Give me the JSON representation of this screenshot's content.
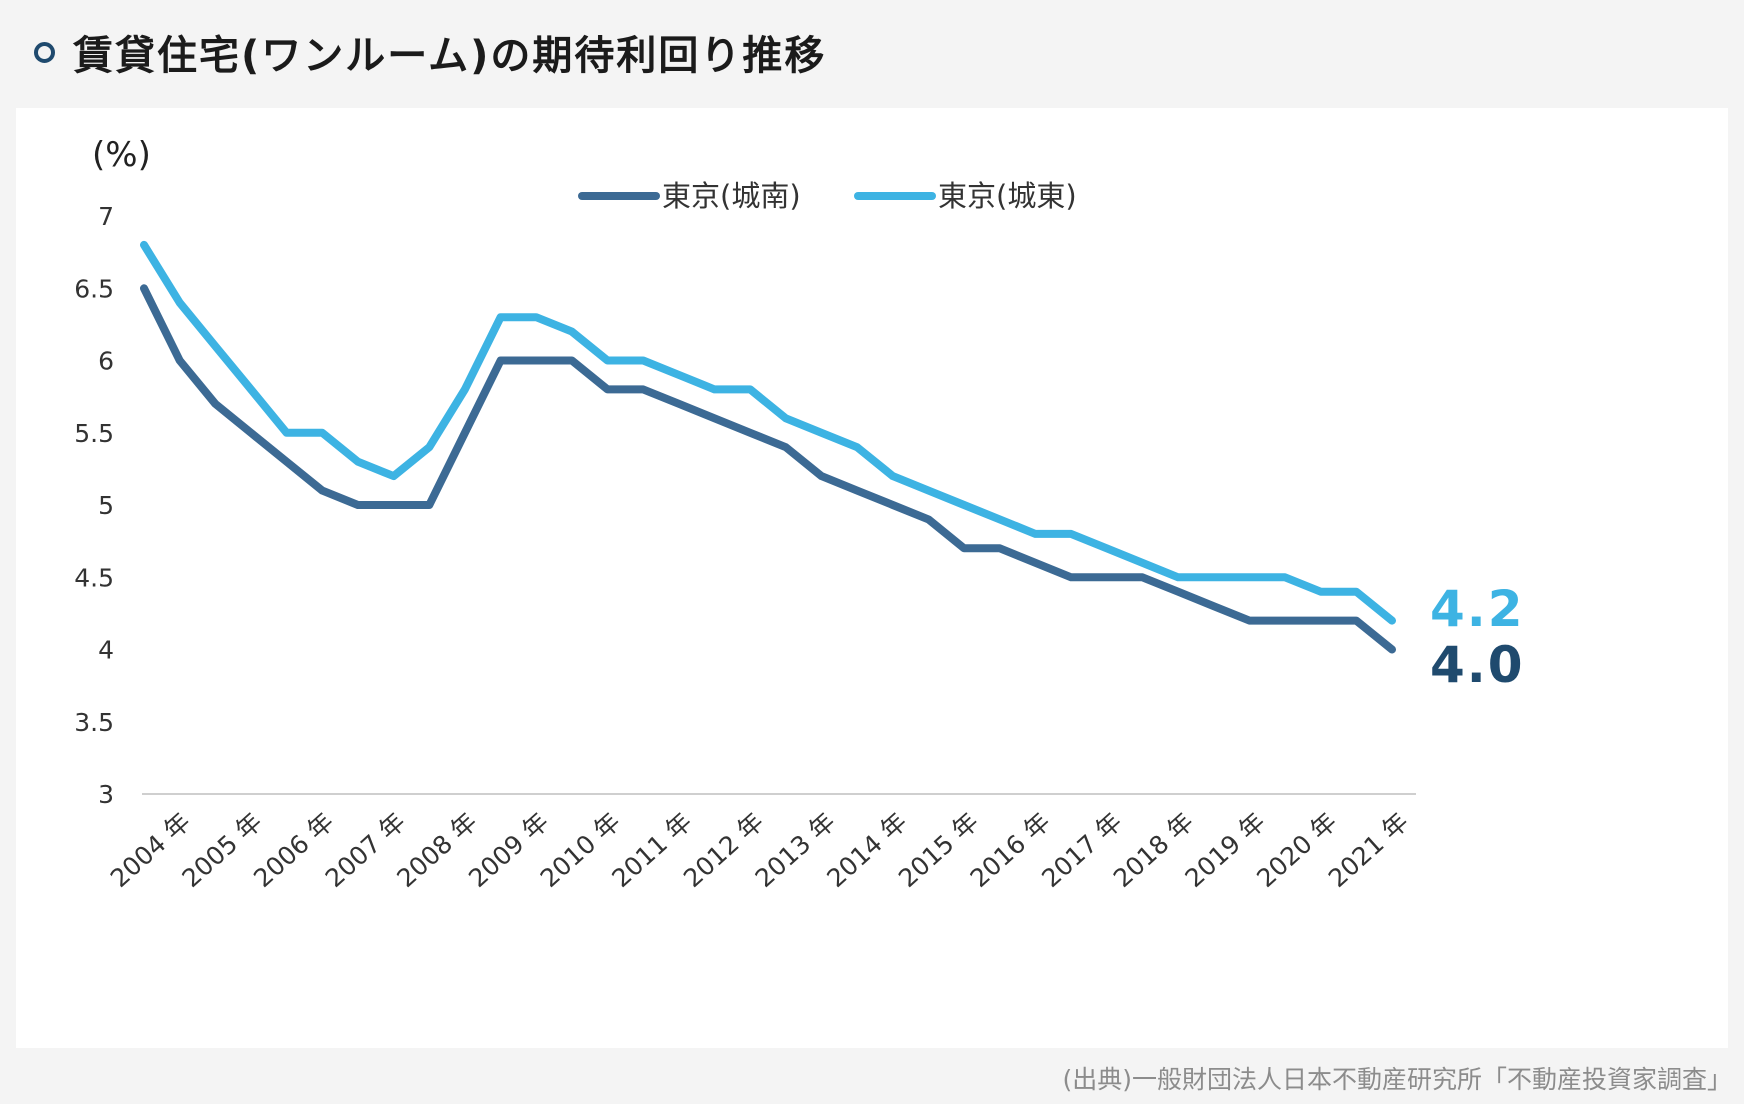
{
  "title": "賃貸住宅(ワンルーム)の期待利回り推移",
  "source": "(出典)一般財団法人日本不動産研究所「不動産投資家調査」",
  "chart_data": {
    "type": "line",
    "ylabel": "(%)",
    "ylim": [
      3,
      7
    ],
    "yticks": [
      "7",
      "6.5",
      "6",
      "5.5",
      "5",
      "4.5",
      "4",
      "3.5",
      "3"
    ],
    "ytick_values": [
      7,
      6.5,
      6,
      5.5,
      5,
      4.5,
      4,
      3.5,
      3
    ],
    "x_labels": [
      "2004 年",
      "2005 年",
      "2006 年",
      "2007 年",
      "2008 年",
      "2009 年",
      "2010 年",
      "2011 年",
      "2012 年",
      "2013 年",
      "2014 年",
      "2015 年",
      "2016 年",
      "2017 年",
      "2018 年",
      "2019 年",
      "2020 年",
      "2021 年"
    ],
    "legend_position": "top",
    "series": [
      {
        "name": "東京(城南)",
        "color": "#3c6a94",
        "values": [
          6.5,
          6.0,
          5.7,
          5.5,
          5.3,
          5.1,
          5.0,
          5.0,
          5.0,
          5.5,
          6.0,
          6.0,
          6.0,
          5.8,
          5.8,
          5.7,
          5.6,
          5.5,
          5.4,
          5.2,
          5.1,
          5.0,
          4.9,
          4.7,
          4.7,
          4.6,
          4.5,
          4.5,
          4.5,
          4.4,
          4.3,
          4.2,
          4.2,
          4.2,
          4.2,
          4.0
        ],
        "end_label": "4.0",
        "end_label_color": "#1f4a6e"
      },
      {
        "name": "東京(城東)",
        "color": "#3db3e3",
        "values": [
          6.8,
          6.4,
          6.1,
          5.8,
          5.5,
          5.5,
          5.3,
          5.2,
          5.4,
          5.8,
          6.3,
          6.3,
          6.2,
          6.0,
          6.0,
          5.9,
          5.8,
          5.8,
          5.6,
          5.5,
          5.4,
          5.2,
          5.1,
          5.0,
          4.9,
          4.8,
          4.8,
          4.7,
          4.6,
          4.5,
          4.5,
          4.5,
          4.5,
          4.4,
          4.4,
          4.2
        ],
        "end_label": "4.2",
        "end_label_color": "#3db3e3"
      }
    ]
  }
}
